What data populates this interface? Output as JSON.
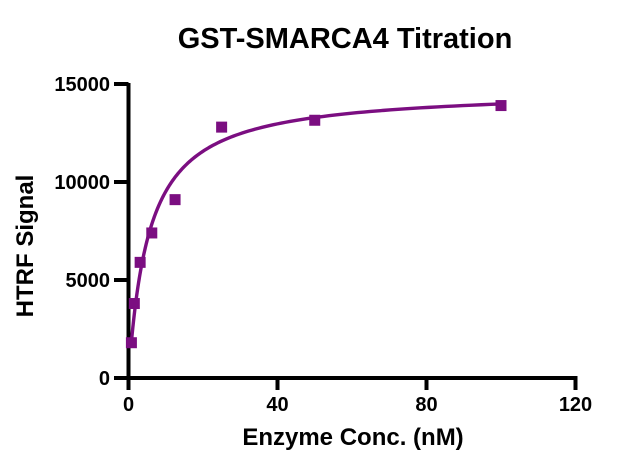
{
  "chart_data": {
    "type": "scatter",
    "title": "GST-SMARCA4 Titration",
    "xlabel": "Enzyme Conc. (nM)",
    "ylabel": "HTRF Signal",
    "xlim": [
      0,
      120
    ],
    "ylim": [
      0,
      15000
    ],
    "x_ticks": [
      0,
      40,
      80,
      120
    ],
    "y_ticks": [
      0,
      5000,
      10000,
      15000
    ],
    "grid": false,
    "legend_position": "none",
    "series": [
      {
        "name": "GST-SMARCA4",
        "marker": "square",
        "marker_color": "#7B0E81",
        "points": [
          {
            "x": 0.781,
            "y": 1800
          },
          {
            "x": 1.563,
            "y": 3800
          },
          {
            "x": 3.125,
            "y": 5900
          },
          {
            "x": 6.25,
            "y": 7400
          },
          {
            "x": 12.5,
            "y": 9100
          },
          {
            "x": 25,
            "y": 12800
          },
          {
            "x": 50,
            "y": 13150
          },
          {
            "x": 100,
            "y": 13900
          }
        ]
      }
    ],
    "fit_curve": {
      "model": "one_site_saturation Y = Bmax*X/(Kd+X)",
      "bmax": 14750,
      "kd": 5.5,
      "x_start": 0.78,
      "x_end": 100,
      "color": "#7B0E81"
    }
  },
  "colors": {
    "series": "#7B0E81",
    "axis": "#000000",
    "text": "#000000",
    "background": "#FFFFFF"
  }
}
